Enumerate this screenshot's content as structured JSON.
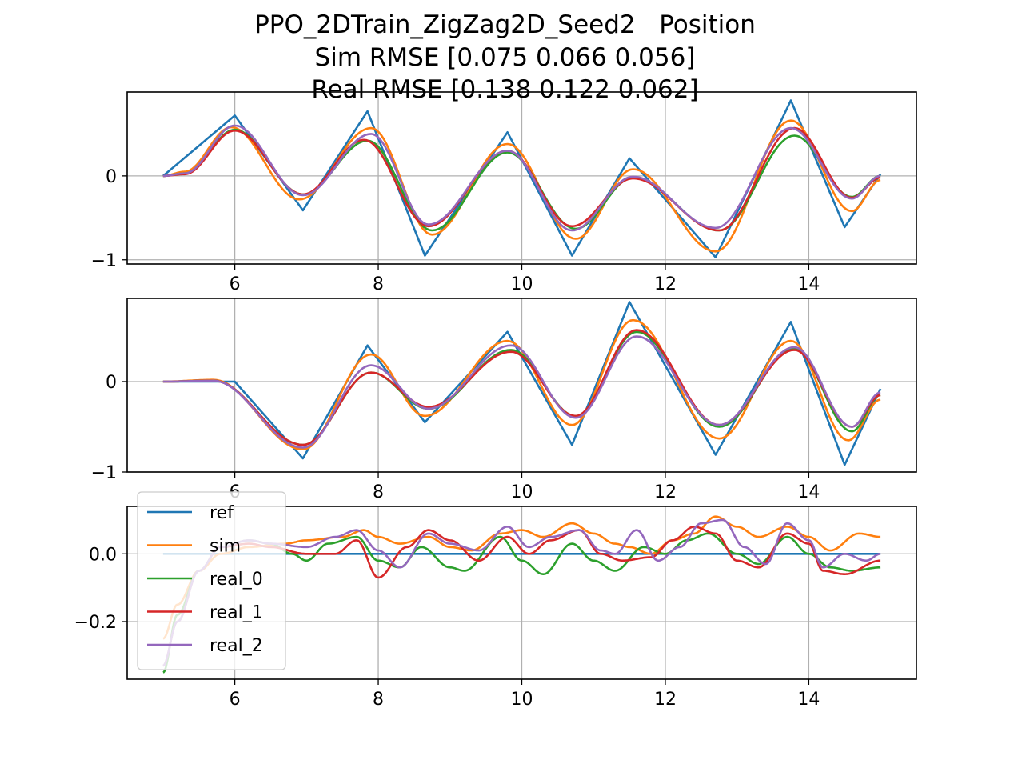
{
  "figure": {
    "title_line1": "PPO_2DTrain_ZigZag2D_Seed2   Position",
    "title_line2": "Sim RMSE [0.075 0.066 0.056]",
    "title_line3": "Real RMSE [0.138 0.122 0.062]"
  },
  "colors": {
    "ref": "#1f77b4",
    "sim": "#ff7f0e",
    "real_0": "#2ca02c",
    "real_1": "#d62728",
    "real_2": "#9467bd",
    "grid": "#b0b0b0"
  },
  "chart_data": [
    {
      "type": "line",
      "subplot": "position-axis-1",
      "grid": true,
      "xlim": [
        4.5,
        15.5
      ],
      "ylim": [
        -1.05,
        1.0
      ],
      "xticks": [
        6,
        8,
        10,
        12,
        14
      ],
      "yticks": [
        0,
        -1
      ],
      "ytick_labels": [
        "0",
        "−1"
      ],
      "series": [
        {
          "name": "ref",
          "x": [
            5.0,
            6.0,
            6.95,
            7.85,
            8.65,
            9.8,
            10.7,
            11.5,
            12.7,
            13.75,
            14.5,
            15.0
          ],
          "values": [
            0.0,
            0.72,
            -0.41,
            0.77,
            -0.95,
            0.52,
            -0.95,
            0.21,
            -0.97,
            0.9,
            -0.61,
            0.02
          ]
        },
        {
          "name": "sim",
          "x": [
            5.0,
            5.3,
            5.95,
            6.9,
            7.9,
            8.75,
            9.8,
            10.75,
            11.55,
            12.7,
            13.75,
            14.6,
            15.0
          ],
          "values": [
            0.0,
            0.05,
            0.58,
            -0.28,
            0.57,
            -0.7,
            0.38,
            -0.75,
            0.08,
            -0.9,
            0.66,
            -0.42,
            -0.05
          ]
        },
        {
          "name": "real_0",
          "x": [
            5.0,
            5.3,
            6.0,
            6.95,
            7.85,
            8.75,
            9.8,
            10.75,
            11.55,
            12.75,
            13.8,
            14.6,
            15.0
          ],
          "values": [
            0.0,
            0.03,
            0.55,
            -0.22,
            0.42,
            -0.65,
            0.28,
            -0.63,
            -0.02,
            -0.65,
            0.48,
            -0.25,
            0.0
          ]
        },
        {
          "name": "real_1",
          "x": [
            5.0,
            5.3,
            6.0,
            6.95,
            7.8,
            8.7,
            9.8,
            10.7,
            11.55,
            12.75,
            13.8,
            14.6,
            15.0
          ],
          "values": [
            0.0,
            0.02,
            0.54,
            -0.22,
            0.43,
            -0.6,
            0.3,
            -0.6,
            -0.03,
            -0.65,
            0.57,
            -0.26,
            -0.02
          ]
        },
        {
          "name": "real_2",
          "x": [
            5.0,
            5.3,
            6.0,
            6.95,
            7.9,
            8.7,
            9.8,
            10.7,
            11.55,
            12.7,
            13.75,
            14.6,
            15.0
          ],
          "values": [
            0.0,
            0.03,
            0.6,
            -0.23,
            0.5,
            -0.58,
            0.3,
            -0.65,
            -0.01,
            -0.62,
            0.57,
            -0.27,
            0.0
          ]
        }
      ]
    },
    {
      "type": "line",
      "subplot": "position-axis-2",
      "grid": true,
      "xlim": [
        4.5,
        15.5
      ],
      "ylim": [
        -1.0,
        0.92
      ],
      "xticks": [
        6,
        8,
        10,
        12,
        14
      ],
      "yticks": [
        0,
        -1
      ],
      "ytick_labels": [
        "0",
        "−1"
      ],
      "series": [
        {
          "name": "ref",
          "x": [
            5.0,
            6.0,
            6.95,
            7.85,
            8.65,
            9.8,
            10.7,
            11.5,
            12.7,
            13.75,
            14.5,
            15.0
          ],
          "values": [
            0.0,
            0.0,
            -0.85,
            0.4,
            -0.45,
            0.55,
            -0.7,
            0.88,
            -0.81,
            0.66,
            -0.92,
            -0.08
          ]
        },
        {
          "name": "sim",
          "x": [
            5.0,
            5.7,
            6.95,
            7.9,
            8.65,
            9.8,
            10.7,
            11.55,
            12.75,
            13.75,
            14.55,
            15.0
          ],
          "values": [
            0.0,
            0.02,
            -0.75,
            0.3,
            -0.38,
            0.45,
            -0.48,
            0.68,
            -0.63,
            0.45,
            -0.65,
            -0.2
          ]
        },
        {
          "name": "real_0",
          "x": [
            5.0,
            5.7,
            6.95,
            7.9,
            8.7,
            9.85,
            10.75,
            11.6,
            12.75,
            13.8,
            14.6,
            15.0
          ],
          "values": [
            0.0,
            0.01,
            -0.7,
            0.1,
            -0.3,
            0.35,
            -0.38,
            0.55,
            -0.5,
            0.36,
            -0.55,
            -0.15
          ]
        },
        {
          "name": "real_1",
          "x": [
            5.0,
            5.7,
            6.95,
            7.9,
            8.7,
            9.85,
            10.75,
            11.6,
            12.75,
            13.8,
            14.6,
            15.0
          ],
          "values": [
            0.0,
            0.01,
            -0.7,
            0.1,
            -0.28,
            0.33,
            -0.38,
            0.57,
            -0.48,
            0.35,
            -0.5,
            -0.15
          ]
        },
        {
          "name": "real_2",
          "x": [
            5.0,
            5.7,
            6.95,
            7.9,
            8.7,
            9.85,
            10.75,
            11.6,
            12.75,
            13.8,
            14.6,
            15.0
          ],
          "values": [
            0.0,
            0.01,
            -0.73,
            0.18,
            -0.3,
            0.4,
            -0.4,
            0.5,
            -0.48,
            0.38,
            -0.5,
            -0.12
          ]
        }
      ]
    },
    {
      "type": "line",
      "subplot": "position-axis-3",
      "grid": true,
      "xlim": [
        4.5,
        15.5
      ],
      "ylim": [
        -0.37,
        0.14
      ],
      "xticks": [
        6,
        8,
        10,
        12,
        14
      ],
      "yticks": [
        0.0,
        -0.2
      ],
      "ytick_labels": [
        "0.0",
        "−0.2"
      ],
      "legend": {
        "position": "upper-left",
        "entries": [
          "ref",
          "sim",
          "real_0",
          "real_1",
          "real_2"
        ]
      },
      "series": [
        {
          "name": "ref",
          "x": [
            5.0,
            15.0
          ],
          "values": [
            0.0,
            0.0
          ]
        },
        {
          "name": "sim",
          "x": [
            5.0,
            5.2,
            5.5,
            5.8,
            6.2,
            6.7,
            7.0,
            7.5,
            7.8,
            8.0,
            8.3,
            8.7,
            9.0,
            9.3,
            9.7,
            10.0,
            10.3,
            10.7,
            11.0,
            11.3,
            11.5,
            11.8,
            12.1,
            12.4,
            12.7,
            13.0,
            13.3,
            13.7,
            14.0,
            14.3,
            14.7,
            15.0
          ],
          "values": [
            -0.25,
            -0.15,
            -0.05,
            0.0,
            0.02,
            0.03,
            0.04,
            0.05,
            0.07,
            0.05,
            0.03,
            0.05,
            0.02,
            0.01,
            0.06,
            0.07,
            0.05,
            0.09,
            0.06,
            0.03,
            0.02,
            0.0,
            0.04,
            0.06,
            0.11,
            0.08,
            0.05,
            0.08,
            0.05,
            0.01,
            0.06,
            0.05
          ]
        },
        {
          "name": "real_0",
          "x": [
            5.0,
            5.2,
            5.5,
            5.8,
            6.2,
            6.5,
            6.8,
            7.0,
            7.3,
            7.7,
            8.0,
            8.3,
            8.6,
            9.0,
            9.2,
            9.7,
            10.0,
            10.3,
            10.7,
            11.0,
            11.3,
            11.7,
            12.0,
            12.3,
            12.6,
            13.0,
            13.3,
            13.7,
            14.0,
            14.3,
            14.6,
            15.0
          ],
          "values": [
            -0.35,
            -0.18,
            -0.05,
            0.02,
            0.04,
            0.03,
            0.0,
            -0.02,
            0.03,
            0.05,
            -0.02,
            -0.04,
            0.02,
            -0.04,
            -0.05,
            0.05,
            -0.02,
            -0.06,
            0.03,
            -0.02,
            -0.05,
            0.02,
            0.0,
            0.04,
            0.06,
            0.0,
            -0.03,
            0.05,
            0.0,
            -0.04,
            -0.05,
            -0.04
          ]
        },
        {
          "name": "real_1",
          "x": [
            5.0,
            5.2,
            5.5,
            5.8,
            6.2,
            6.5,
            7.0,
            7.4,
            7.7,
            8.0,
            8.4,
            8.7,
            9.0,
            9.4,
            9.8,
            10.1,
            10.4,
            10.8,
            11.1,
            11.4,
            11.8,
            12.1,
            12.4,
            12.7,
            13.0,
            13.3,
            13.7,
            14.0,
            14.2,
            14.5,
            15.0
          ],
          "values": [
            -0.33,
            -0.2,
            -0.05,
            0.02,
            0.03,
            0.02,
            0.0,
            0.0,
            0.04,
            -0.07,
            0.02,
            0.07,
            0.04,
            -0.02,
            0.05,
            0.0,
            0.04,
            0.07,
            0.0,
            -0.02,
            -0.01,
            0.04,
            0.08,
            0.06,
            -0.02,
            -0.04,
            0.06,
            0.03,
            -0.05,
            -0.06,
            -0.02
          ]
        },
        {
          "name": "real_2",
          "x": [
            5.0,
            5.2,
            5.5,
            5.8,
            6.2,
            6.5,
            7.0,
            7.4,
            7.7,
            8.0,
            8.3,
            8.7,
            9.0,
            9.4,
            9.8,
            10.1,
            10.4,
            10.8,
            11.1,
            11.3,
            11.6,
            11.9,
            12.2,
            12.5,
            12.8,
            13.1,
            13.4,
            13.7,
            14.0,
            14.2,
            14.5,
            14.8,
            15.0
          ],
          "values": [
            -0.33,
            -0.2,
            -0.05,
            0.02,
            0.04,
            0.03,
            0.02,
            0.05,
            0.07,
            0.01,
            -0.04,
            0.06,
            0.03,
            0.01,
            0.08,
            0.02,
            0.05,
            0.07,
            0.01,
            0.0,
            0.07,
            -0.02,
            0.02,
            0.09,
            0.1,
            0.02,
            -0.03,
            0.09,
            0.04,
            -0.04,
            0.0,
            -0.02,
            0.0
          ]
        }
      ]
    }
  ]
}
